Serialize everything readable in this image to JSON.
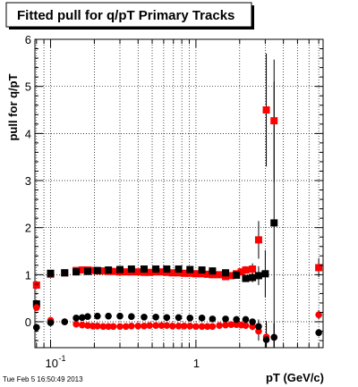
{
  "chart_data": {
    "type": "scatter",
    "title": "Fitted pull for q/pT  Primary Tracks",
    "xlabel": "pT (GeV/c)",
    "ylabel": "pull for q/pT",
    "xscale": "log",
    "xlim": [
      0.078,
      7.5
    ],
    "ylim": [
      -0.55,
      6
    ],
    "grid": true,
    "xtick_labels": [
      {
        "value": 0.1,
        "base": "10",
        "exp": "-1"
      },
      {
        "value": 1,
        "base": "1",
        "exp": ""
      }
    ],
    "ytick_labels": [
      0,
      1,
      2,
      3,
      4,
      5,
      6
    ],
    "timestamp": "Tue Feb  5 16:50:49 2013",
    "colors": {
      "mean_series": "#ff0000",
      "width_series": "#000000",
      "error_bars": "#000000"
    },
    "series": [
      {
        "role": "width",
        "color": "#ff0000",
        "marker": "square",
        "x": [
          0.08,
          0.1,
          0.125,
          0.15,
          0.165,
          0.18,
          0.195,
          0.21,
          0.23,
          0.25,
          0.27,
          0.3,
          0.33,
          0.36,
          0.4,
          0.44,
          0.48,
          0.53,
          0.58,
          0.63,
          0.69,
          0.76,
          0.83,
          0.91,
          1.0,
          1.1,
          1.2,
          1.3,
          1.45,
          1.6,
          1.75,
          1.9,
          2.05,
          2.2,
          2.45,
          2.7,
          3.05,
          3.45,
          7.0
        ],
        "y": [
          0.78,
          1.01,
          1.04,
          1.09,
          1.1,
          1.1,
          1.09,
          1.08,
          1.08,
          1.07,
          1.07,
          1.06,
          1.06,
          1.06,
          1.06,
          1.05,
          1.05,
          1.06,
          1.06,
          1.05,
          1.04,
          1.04,
          1.03,
          1.03,
          1.02,
          1.02,
          1.01,
          1.0,
          1.0,
          0.96,
          0.98,
          1.02,
          1.06,
          1.1,
          1.12,
          1.74,
          4.5,
          4.27,
          1.15
        ],
        "yerr": [
          0.04,
          0.03,
          0.02,
          0.02,
          0.02,
          0.02,
          0.02,
          0.02,
          0.02,
          0.02,
          0.02,
          0.02,
          0.02,
          0.02,
          0.02,
          0.02,
          0.02,
          0.02,
          0.02,
          0.02,
          0.02,
          0.02,
          0.02,
          0.02,
          0.02,
          0.02,
          0.02,
          0.02,
          0.03,
          0.03,
          0.04,
          0.05,
          0.06,
          0.08,
          0.12,
          0.4,
          1.2,
          1.3,
          0.2
        ]
      },
      {
        "role": "width",
        "color": "#000000",
        "marker": "square",
        "x": [
          0.08,
          0.1,
          0.125,
          0.15,
          0.18,
          0.21,
          0.25,
          0.3,
          0.36,
          0.44,
          0.53,
          0.63,
          0.76,
          0.91,
          1.1,
          1.3,
          1.6,
          1.9,
          2.2,
          2.45,
          2.7,
          3.0,
          3.45
        ],
        "y": [
          0.38,
          1.03,
          1.04,
          1.06,
          1.07,
          1.09,
          1.1,
          1.11,
          1.12,
          1.12,
          1.12,
          1.12,
          1.12,
          1.11,
          1.1,
          1.08,
          1.04,
          0.99,
          0.92,
          0.94,
          0.98,
          1.02,
          2.1
        ],
        "yerr": [
          0.05,
          0.03,
          0.02,
          0.02,
          0.02,
          0.02,
          0.02,
          0.02,
          0.02,
          0.02,
          0.02,
          0.02,
          0.02,
          0.02,
          0.02,
          0.02,
          0.03,
          0.04,
          0.06,
          0.1,
          0.2,
          0.5,
          3.0
        ]
      },
      {
        "role": "mean",
        "color": "#ff0000",
        "marker": "circle",
        "x": [
          0.08,
          0.1,
          0.125,
          0.15,
          0.165,
          0.18,
          0.195,
          0.21,
          0.23,
          0.25,
          0.27,
          0.3,
          0.33,
          0.36,
          0.4,
          0.44,
          0.48,
          0.53,
          0.58,
          0.63,
          0.69,
          0.76,
          0.83,
          0.91,
          1.0,
          1.1,
          1.2,
          1.3,
          1.45,
          1.6,
          1.75,
          1.9,
          2.05,
          2.2,
          2.45,
          2.7,
          3.05,
          3.45,
          7.0
        ],
        "y": [
          0.3,
          0.03,
          0.0,
          -0.05,
          -0.07,
          -0.08,
          -0.09,
          -0.09,
          -0.1,
          -0.1,
          -0.1,
          -0.1,
          -0.1,
          -0.09,
          -0.09,
          -0.09,
          -0.08,
          -0.08,
          -0.08,
          -0.08,
          -0.09,
          -0.09,
          -0.09,
          -0.09,
          -0.1,
          -0.1,
          -0.1,
          -0.1,
          -0.08,
          -0.07,
          -0.06,
          -0.06,
          -0.07,
          -0.08,
          -0.1,
          -0.2,
          -0.32,
          -0.33,
          0.15
        ],
        "yerr": [
          0.03,
          0.02,
          0.02,
          0.02,
          0.02,
          0.02,
          0.02,
          0.02,
          0.02,
          0.02,
          0.02,
          0.02,
          0.02,
          0.02,
          0.02,
          0.02,
          0.02,
          0.02,
          0.02,
          0.02,
          0.02,
          0.02,
          0.02,
          0.02,
          0.02,
          0.02,
          0.02,
          0.02,
          0.02,
          0.03,
          0.03,
          0.04,
          0.05,
          0.06,
          0.08,
          0.2,
          0.3,
          0.3,
          0.1
        ]
      },
      {
        "role": "mean",
        "color": "#000000",
        "marker": "circle",
        "x": [
          0.08,
          0.1,
          0.125,
          0.15,
          0.165,
          0.18,
          0.21,
          0.25,
          0.3,
          0.36,
          0.44,
          0.53,
          0.63,
          0.76,
          0.91,
          1.1,
          1.3,
          1.6,
          1.9,
          2.2,
          2.45,
          2.7,
          3.05,
          3.45,
          7.0
        ],
        "y": [
          -0.12,
          -0.02,
          0.0,
          0.08,
          0.09,
          0.11,
          0.12,
          0.12,
          0.12,
          0.11,
          0.1,
          0.1,
          0.09,
          0.09,
          0.08,
          0.08,
          0.06,
          0.06,
          0.05,
          0.05,
          0.0,
          -0.1,
          -0.38,
          -0.33,
          -0.23
        ],
        "yerr": [
          0.03,
          0.02,
          0.02,
          0.02,
          0.02,
          0.02,
          0.02,
          0.02,
          0.02,
          0.02,
          0.02,
          0.02,
          0.02,
          0.02,
          0.02,
          0.02,
          0.02,
          0.03,
          0.03,
          0.04,
          0.06,
          0.15,
          0.4,
          0.3,
          0.08
        ]
      }
    ]
  }
}
